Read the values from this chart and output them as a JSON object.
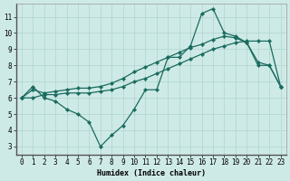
{
  "xlabel": "Humidex (Indice chaleur)",
  "xlim": [
    -0.5,
    23.5
  ],
  "ylim": [
    2.5,
    11.8
  ],
  "yticks": [
    3,
    4,
    5,
    6,
    7,
    8,
    9,
    10,
    11
  ],
  "xticks": [
    0,
    1,
    2,
    3,
    4,
    5,
    6,
    7,
    8,
    9,
    10,
    11,
    12,
    13,
    14,
    15,
    16,
    17,
    18,
    19,
    20,
    21,
    22,
    23
  ],
  "bg_color": "#ceeae7",
  "grid_color": "#afd4d0",
  "line_color": "#1a6b5e",
  "series1": [
    6.0,
    6.7,
    6.0,
    5.8,
    5.3,
    5.0,
    4.5,
    3.0,
    3.7,
    4.3,
    5.3,
    6.5,
    6.5,
    8.5,
    8.5,
    9.2,
    11.2,
    11.5,
    10.0,
    9.8,
    9.4,
    8.0,
    8.0,
    6.7
  ],
  "series2": [
    6.0,
    6.0,
    6.2,
    6.2,
    6.3,
    6.3,
    6.3,
    6.4,
    6.5,
    6.7,
    7.0,
    7.2,
    7.5,
    7.8,
    8.1,
    8.4,
    8.7,
    9.0,
    9.2,
    9.4,
    9.5,
    9.5,
    9.5,
    6.7
  ],
  "series3": [
    6.0,
    6.5,
    6.3,
    6.4,
    6.5,
    6.6,
    6.6,
    6.7,
    6.9,
    7.2,
    7.6,
    7.9,
    8.2,
    8.5,
    8.8,
    9.1,
    9.3,
    9.6,
    9.8,
    9.7,
    9.4,
    8.2,
    8.0,
    6.7
  ],
  "tick_fontsize": 5.5,
  "xlabel_fontsize": 6.0
}
